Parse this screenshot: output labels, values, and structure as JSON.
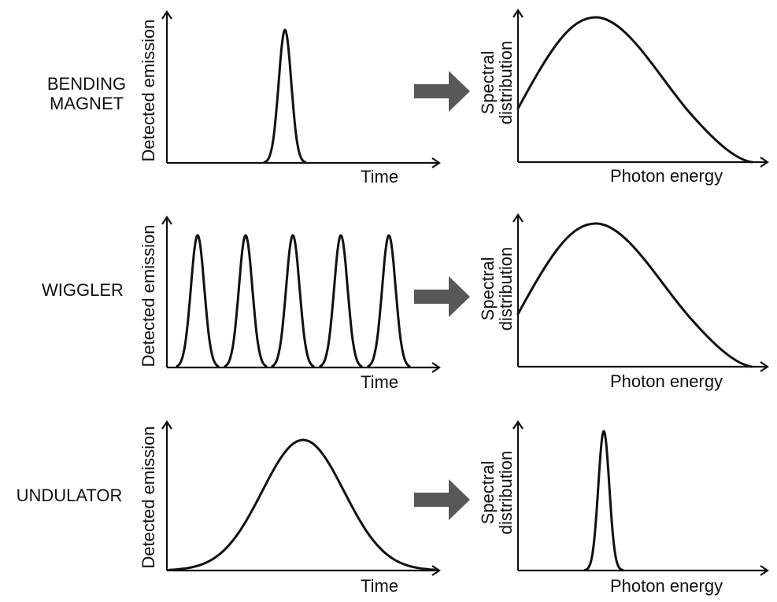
{
  "rows": [
    {
      "name_lines": [
        "BENDING",
        "MAGNET"
      ],
      "time_xlabel": "Time",
      "time_ylabel": "Detected emission",
      "spec_xlabel": "Photon energy",
      "spec_ylabel_lines": [
        "Spectral",
        "distribution"
      ]
    },
    {
      "name_lines": [
        "WIGGLER"
      ],
      "time_xlabel": "Time",
      "time_ylabel": "Detected emission",
      "spec_xlabel": "Photon energy",
      "spec_ylabel_lines": [
        "Spectral",
        "distribution"
      ]
    },
    {
      "name_lines": [
        "UNDULATOR"
      ],
      "time_xlabel": "Time",
      "time_ylabel": "Detected emission",
      "spec_xlabel": "Photon energy",
      "spec_ylabel_lines": [
        "Spectral",
        "distribution"
      ]
    }
  ],
  "colors": {
    "line": "#111111",
    "arrow": "#585858",
    "background": "#ffffff"
  }
}
